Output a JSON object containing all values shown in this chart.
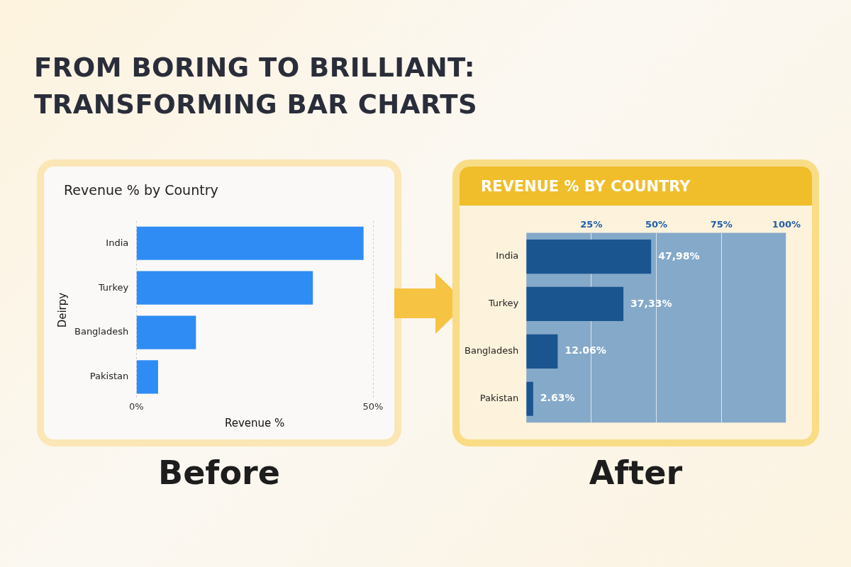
{
  "chart_data": [
    {
      "type": "other",
      "title": "FROM BORING TO BRILLIANT: TRANSFORMING BAR CHARTS"
    },
    {
      "type": "bar",
      "orientation": "horizontal",
      "title": "Revenue % by Country",
      "xlabel": "Revenue %",
      "ylabel": "Deirpy",
      "categories": [
        "India",
        "Turkey",
        "Bangladesh",
        "Pakistan"
      ],
      "values": [
        48,
        37.3,
        12.6,
        4.6
      ],
      "color": "#2f8cf5",
      "xlim": [
        0,
        50
      ],
      "xticks": [
        {
          "value": 0,
          "label": "0%"
        },
        {
          "value": 50,
          "label": "50%"
        }
      ],
      "grid": "x",
      "annotations": [
        "Before"
      ]
    },
    {
      "type": "bar",
      "orientation": "horizontal",
      "title": "REVENUE % BY COUNTRY",
      "categories": [
        "India",
        "Turkey",
        "Bangladesh",
        "Pakistan"
      ],
      "values": [
        47.98,
        37.33,
        12.06,
        2.63
      ],
      "color": "#1b5590",
      "value_labels": [
        "47,98%",
        "37,33%",
        "12.06%",
        "2.63%"
      ],
      "xlim": [
        0,
        100
      ],
      "xticks": [
        {
          "value": 25,
          "label": "25%"
        },
        {
          "value": 50,
          "label": "50%"
        },
        {
          "value": 75,
          "label": "75%"
        },
        {
          "value": 100,
          "label": "100%"
        }
      ],
      "grid": "x",
      "bands": [
        {
          "axis": "x",
          "from": 0,
          "to": 100,
          "color": "#85a9c9"
        }
      ],
      "annotations": [
        "After"
      ]
    }
  ]
}
